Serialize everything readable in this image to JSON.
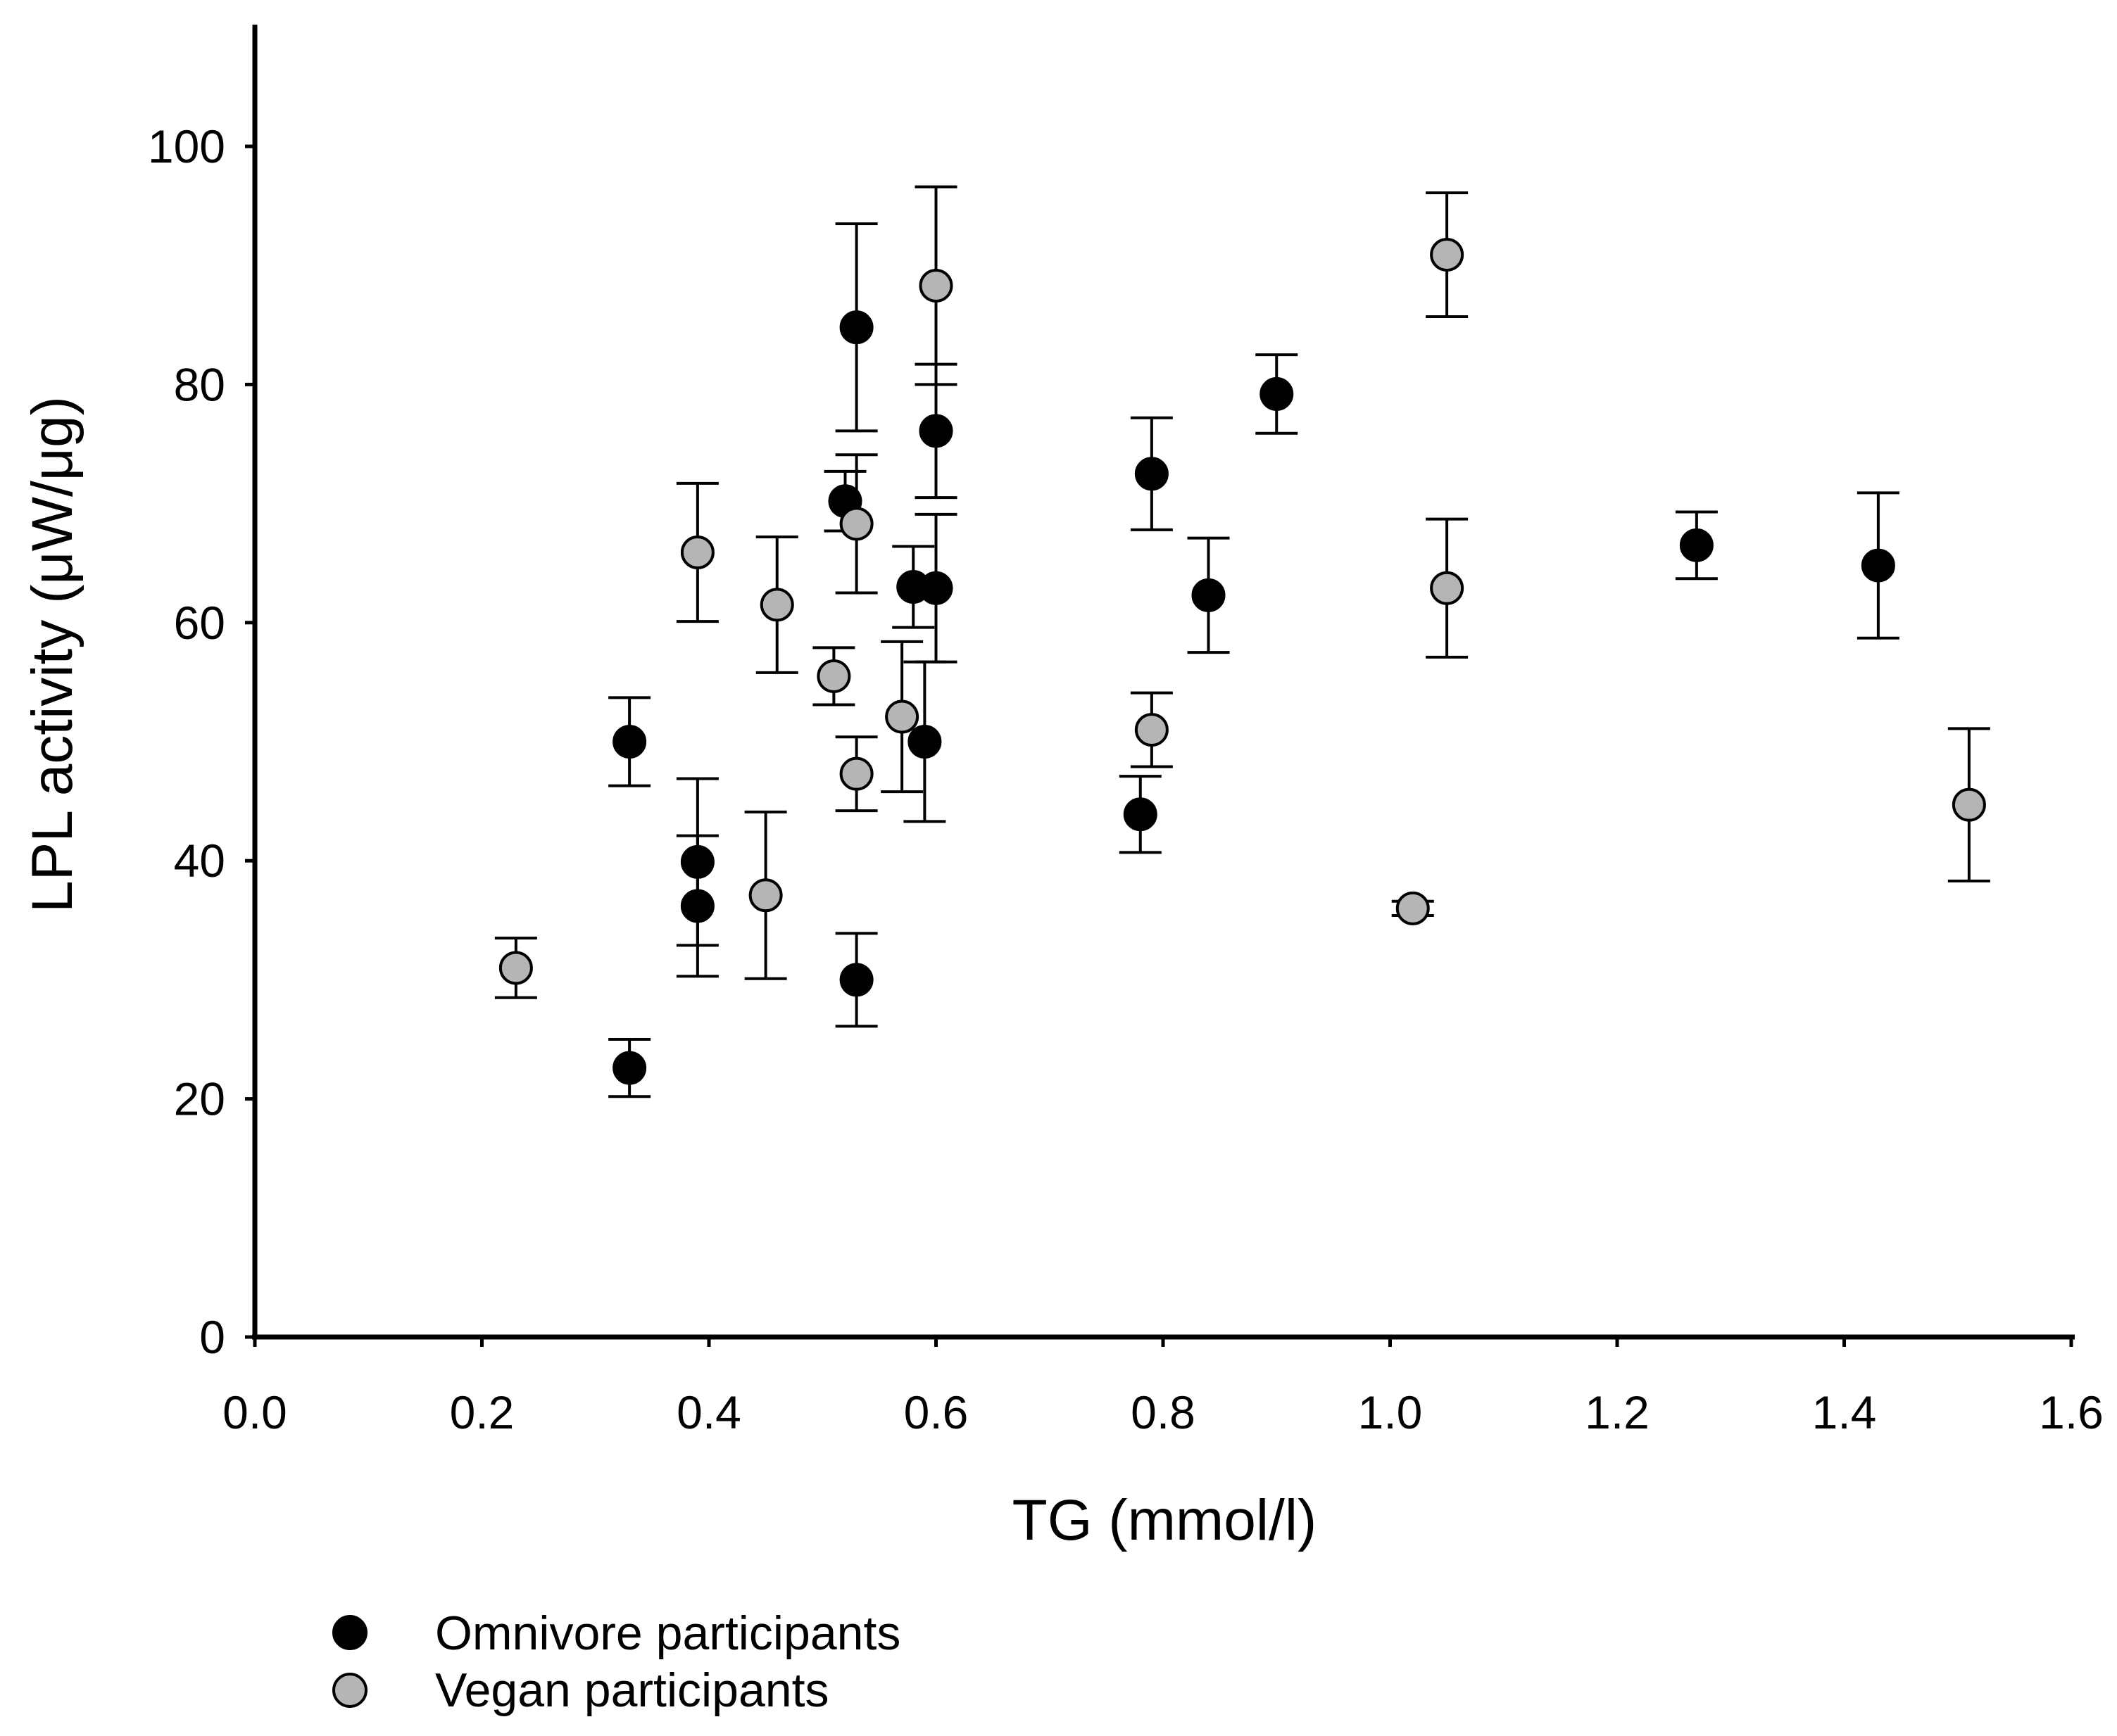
{
  "chart_data": {
    "type": "scatter",
    "xlabel": "TG (mmol/l)",
    "ylabel": "LPL activity (μW/μg)",
    "xlim": [
      0.0,
      1.6
    ],
    "ylim": [
      0,
      110
    ],
    "x_ticks": [
      "0.0",
      "0.2",
      "0.4",
      "0.6",
      "0.8",
      "1.0",
      "1.2",
      "1.4",
      "1.6"
    ],
    "y_ticks": [
      "0",
      "20",
      "40",
      "60",
      "80",
      "100"
    ],
    "legend_position": "bottom-left",
    "grid": false,
    "error_bars": true,
    "series": [
      {
        "name": "Omnivore participants",
        "color": "#000000",
        "points": [
          {
            "x": 0.33,
            "y": 50.0,
            "err": 3.7
          },
          {
            "x": 0.33,
            "y": 22.6,
            "err": 2.4
          },
          {
            "x": 0.39,
            "y": 39.9,
            "err": 7.0
          },
          {
            "x": 0.39,
            "y": 36.2,
            "err": 5.9
          },
          {
            "x": 0.52,
            "y": 70.2,
            "err": 2.5
          },
          {
            "x": 0.53,
            "y": 84.8,
            "err": 8.7
          },
          {
            "x": 0.53,
            "y": 30.0,
            "err": 3.9
          },
          {
            "x": 0.58,
            "y": 63.0,
            "err": 3.4
          },
          {
            "x": 0.59,
            "y": 50.0,
            "err": 6.7
          },
          {
            "x": 0.6,
            "y": 76.1,
            "err": 5.6
          },
          {
            "x": 0.6,
            "y": 62.9,
            "err": 6.2
          },
          {
            "x": 0.78,
            "y": 43.9,
            "err": 3.2
          },
          {
            "x": 0.79,
            "y": 72.5,
            "err": 4.7
          },
          {
            "x": 0.84,
            "y": 62.3,
            "err": 4.8
          },
          {
            "x": 0.9,
            "y": 79.2,
            "err": 3.3
          },
          {
            "x": 1.27,
            "y": 66.5,
            "err": 2.8
          },
          {
            "x": 1.43,
            "y": 64.8,
            "err": 6.1
          }
        ]
      },
      {
        "name": "Vegan participants",
        "color": "#b5b5b5",
        "points": [
          {
            "x": 0.23,
            "y": 31.0,
            "err": 2.5
          },
          {
            "x": 0.39,
            "y": 65.9,
            "err": 5.8
          },
          {
            "x": 0.45,
            "y": 37.1,
            "err": 7.0
          },
          {
            "x": 0.46,
            "y": 61.5,
            "err": 5.7
          },
          {
            "x": 0.51,
            "y": 55.5,
            "err": 2.4
          },
          {
            "x": 0.53,
            "y": 68.3,
            "err": 5.8
          },
          {
            "x": 0.53,
            "y": 47.3,
            "err": 3.1
          },
          {
            "x": 0.57,
            "y": 52.1,
            "err": 6.3
          },
          {
            "x": 0.6,
            "y": 88.3,
            "err": 8.3
          },
          {
            "x": 0.79,
            "y": 51.0,
            "err": 3.1
          },
          {
            "x": 1.02,
            "y": 36.0,
            "err": 0.6
          },
          {
            "x": 1.05,
            "y": 90.9,
            "err": 5.2
          },
          {
            "x": 1.05,
            "y": 62.9,
            "err": 5.8
          },
          {
            "x": 1.51,
            "y": 44.7,
            "err": 6.4
          }
        ]
      }
    ]
  }
}
